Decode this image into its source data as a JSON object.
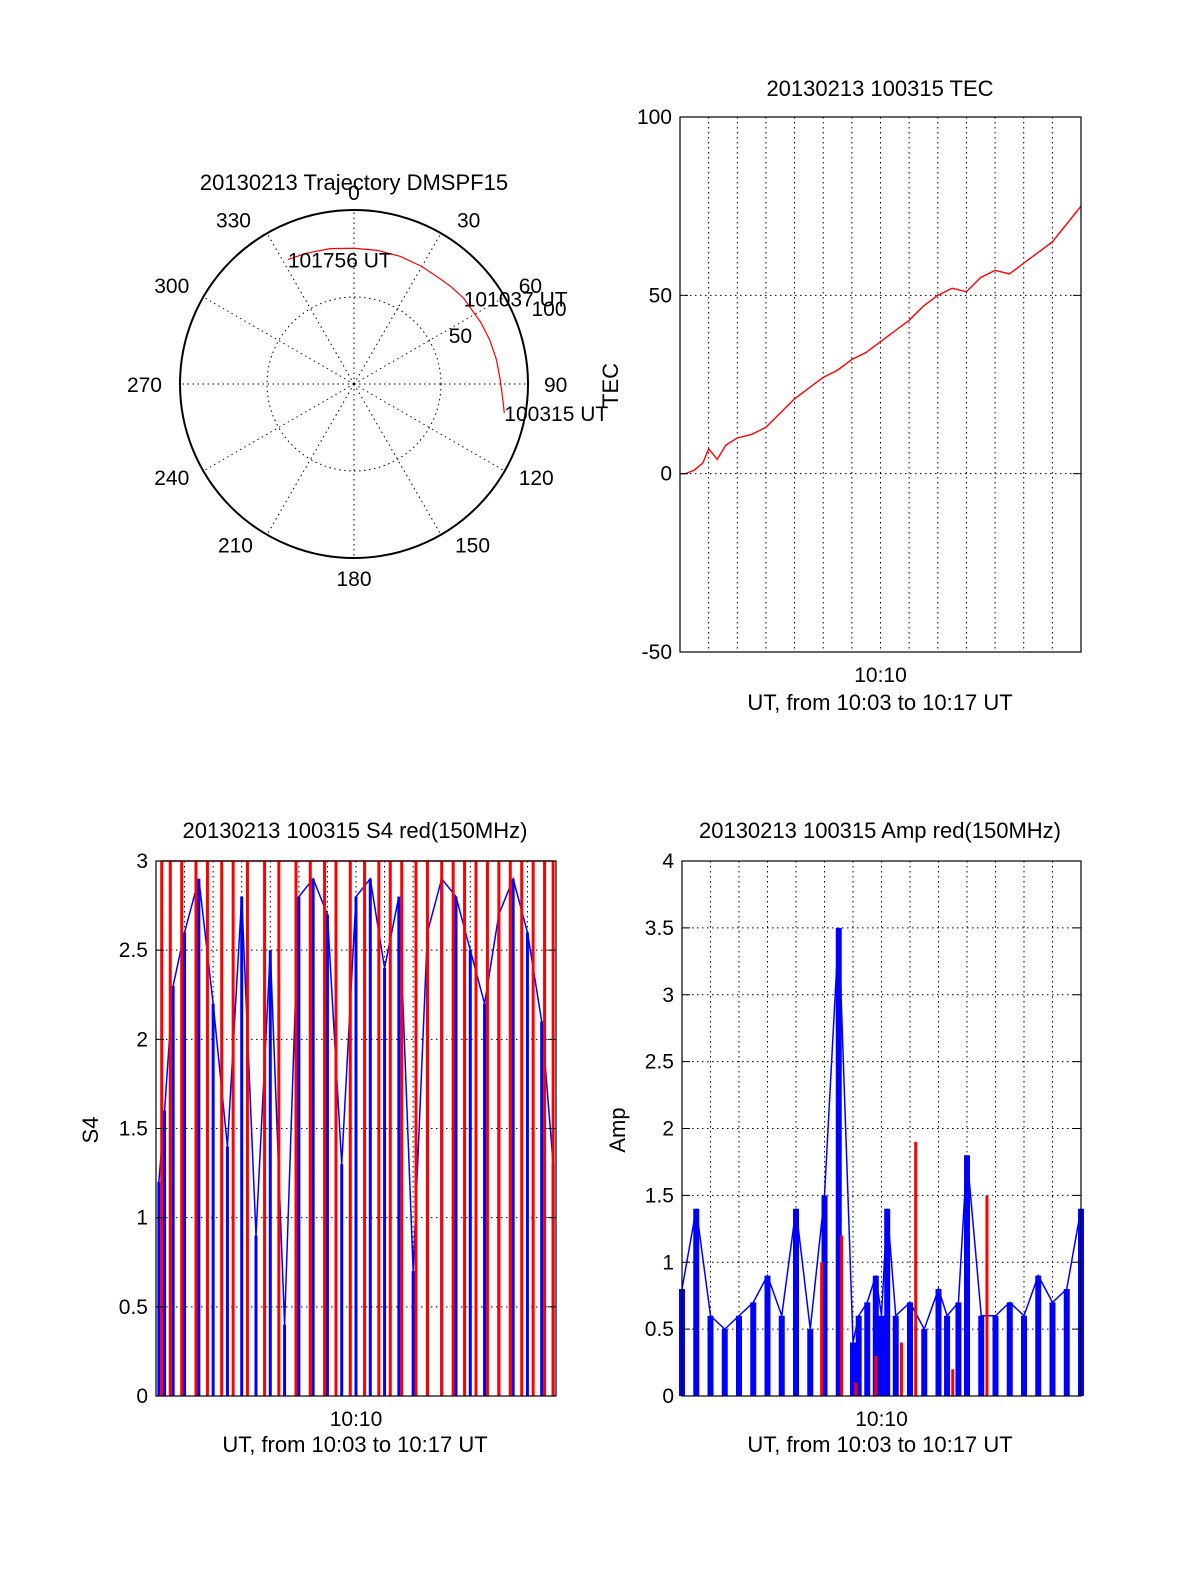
{
  "colors": {
    "primary": "#ff0000",
    "secondary": "#0000ff",
    "axes": "#000000"
  },
  "chart_data": [
    {
      "id": "trajectory",
      "type": "polar",
      "title": "20130213 Trajectory DMSPF15",
      "azimuth_labels": [
        "0",
        "30",
        "60",
        "90",
        "120",
        "150",
        "180",
        "210",
        "240",
        "270",
        "300",
        "330"
      ],
      "radial_ticks": [
        "50",
        "100"
      ],
      "radial_max": 100,
      "grid": true,
      "trajectory": {
        "azimuth_deg": [
          101,
          96,
          88,
          80,
          72,
          64,
          58,
          52,
          45,
          38,
          30,
          20,
          10,
          0,
          -10,
          -20,
          -28
        ],
        "radius": [
          88,
          86,
          84,
          83,
          82,
          81,
          80,
          80,
          79,
          78,
          78,
          78,
          78,
          78,
          79,
          80,
          81
        ]
      },
      "annotations": [
        {
          "text": "100315 UT",
          "azimuth_deg": 101,
          "radius": 88
        },
        {
          "text": "101037 UT",
          "azimuth_deg": 52,
          "radius": 80
        },
        {
          "text": "101756 UT",
          "azimuth_deg": -28,
          "radius": 81
        }
      ]
    },
    {
      "id": "tec",
      "type": "line",
      "title": "20130213 100315 TEC",
      "xlabel": "UT, from 10:03 to 10:17 UT",
      "ylabel": "TEC",
      "xlim_minutes": [
        3,
        17
      ],
      "xtick_labels": [
        {
          "minute": 10,
          "label": "10:10"
        }
      ],
      "ylim": [
        -50,
        100
      ],
      "yticks": [
        -50,
        0,
        50,
        100
      ],
      "grid": true,
      "series": [
        {
          "x_minutes": [
            3.0,
            3.2,
            3.5,
            3.8,
            4.0,
            4.3,
            4.6,
            5.0,
            5.5,
            6.0,
            6.5,
            7.0,
            7.5,
            8.0,
            8.5,
            9.0,
            9.5,
            10.0,
            10.5,
            11.0,
            11.5,
            12.0,
            12.5,
            13.0,
            13.5,
            14.0,
            14.5,
            15.0,
            15.5,
            16.0,
            16.5,
            17.0
          ],
          "values": [
            0,
            0,
            1,
            3,
            7,
            4,
            8,
            10,
            11,
            13,
            17,
            21,
            24,
            27,
            29,
            32,
            34,
            37,
            40,
            43,
            47,
            50,
            52,
            51,
            55,
            57,
            56,
            59,
            62,
            65,
            70,
            75
          ]
        }
      ]
    },
    {
      "id": "s4",
      "type": "line",
      "title": "20130213 100315 S4 red(150MHz)",
      "xlabel": "UT, from 10:03 to 10:17 UT",
      "ylabel": "S4",
      "xlim_minutes": [
        3,
        17
      ],
      "xtick_labels": [
        {
          "minute": 10,
          "label": "10:10"
        }
      ],
      "ylim": [
        0,
        3
      ],
      "yticks": [
        0,
        0.5,
        1,
        1.5,
        2,
        2.5,
        3
      ],
      "ytick_labels": [
        "0",
        "0.5",
        "1",
        "1.5",
        "2",
        "2.5",
        "3"
      ],
      "grid": true,
      "series": [
        {
          "color": "secondary",
          "x_minutes": [
            3.1,
            3.3,
            3.6,
            4.0,
            4.5,
            5.0,
            5.5,
            6.0,
            6.5,
            7.0,
            7.5,
            8.0,
            8.5,
            9.0,
            9.5,
            10.0,
            10.5,
            11.0,
            11.5,
            12.0,
            12.5,
            13.0,
            13.5,
            14.0,
            14.5,
            15.0,
            15.5,
            16.0,
            16.5,
            16.9
          ],
          "values": [
            1.2,
            1.6,
            2.3,
            2.6,
            2.9,
            2.2,
            1.4,
            2.8,
            0.9,
            2.5,
            0.4,
            2.8,
            2.9,
            2.7,
            1.3,
            2.8,
            2.9,
            2.4,
            2.8,
            0.7,
            2.6,
            2.9,
            2.8,
            2.5,
            2.2,
            2.7,
            2.9,
            2.6,
            2.1,
            1.3
          ]
        },
        {
          "color": "primary",
          "x_minutes": [
            3.2,
            3.5,
            3.9,
            4.4,
            4.8,
            5.3,
            5.7,
            6.2,
            6.8,
            7.3,
            7.9,
            8.4,
            8.9,
            9.3,
            9.8,
            10.3,
            10.8,
            11.2,
            11.6,
            12.1,
            12.5,
            13.0,
            13.4,
            13.8,
            14.2,
            14.6,
            15.0,
            15.4,
            15.8,
            16.2,
            16.6,
            16.9
          ],
          "values": [
            3,
            3,
            3,
            3,
            3,
            3,
            3,
            3,
            3,
            3,
            3,
            3,
            3,
            3,
            3,
            3,
            3,
            3,
            3,
            3,
            3,
            3,
            3,
            3,
            3,
            3,
            3,
            3,
            3,
            3,
            3,
            3
          ]
        }
      ]
    },
    {
      "id": "amp",
      "type": "line",
      "title": "20130213 100315 Amp red(150MHz)",
      "xlabel": "UT, from 10:03 to 10:17 UT",
      "ylabel": "Amp",
      "xlim_minutes": [
        3,
        17
      ],
      "xtick_labels": [
        {
          "minute": 10,
          "label": "10:10"
        }
      ],
      "ylim": [
        0,
        4
      ],
      "yticks": [
        0,
        0.5,
        1,
        1.5,
        2,
        2.5,
        3,
        3.5,
        4
      ],
      "ytick_labels": [
        "0",
        "0.5",
        "1",
        "1.5",
        "2",
        "2.5",
        "3",
        "3.5",
        "4"
      ],
      "grid": true,
      "series": [
        {
          "color": "secondary",
          "x_minutes": [
            3.0,
            3.5,
            4.0,
            4.5,
            5.0,
            5.5,
            6.0,
            6.5,
            7.0,
            7.5,
            8.0,
            8.5,
            9.0,
            9.2,
            9.5,
            9.8,
            10.0,
            10.2,
            10.5,
            11.0,
            11.5,
            12.0,
            12.3,
            12.7,
            13.0,
            13.5,
            14.0,
            14.5,
            15.0,
            15.5,
            16.0,
            16.5,
            17.0
          ],
          "values": [
            0.8,
            1.4,
            0.6,
            0.5,
            0.6,
            0.7,
            0.9,
            0.6,
            1.4,
            0.5,
            1.5,
            3.5,
            0.4,
            0.6,
            0.7,
            0.9,
            0.6,
            1.4,
            0.6,
            0.7,
            0.5,
            0.8,
            0.6,
            0.7,
            1.8,
            0.6,
            0.6,
            0.7,
            0.6,
            0.9,
            0.7,
            0.8,
            1.4
          ]
        },
        {
          "color": "primary",
          "x_minutes": [
            7.9,
            8.6,
            9.1,
            9.8,
            10.7,
            11.2,
            12.5,
            13.7
          ],
          "values": [
            1.0,
            1.2,
            0.1,
            0.3,
            0.4,
            1.9,
            0.2,
            1.5
          ]
        }
      ]
    }
  ]
}
